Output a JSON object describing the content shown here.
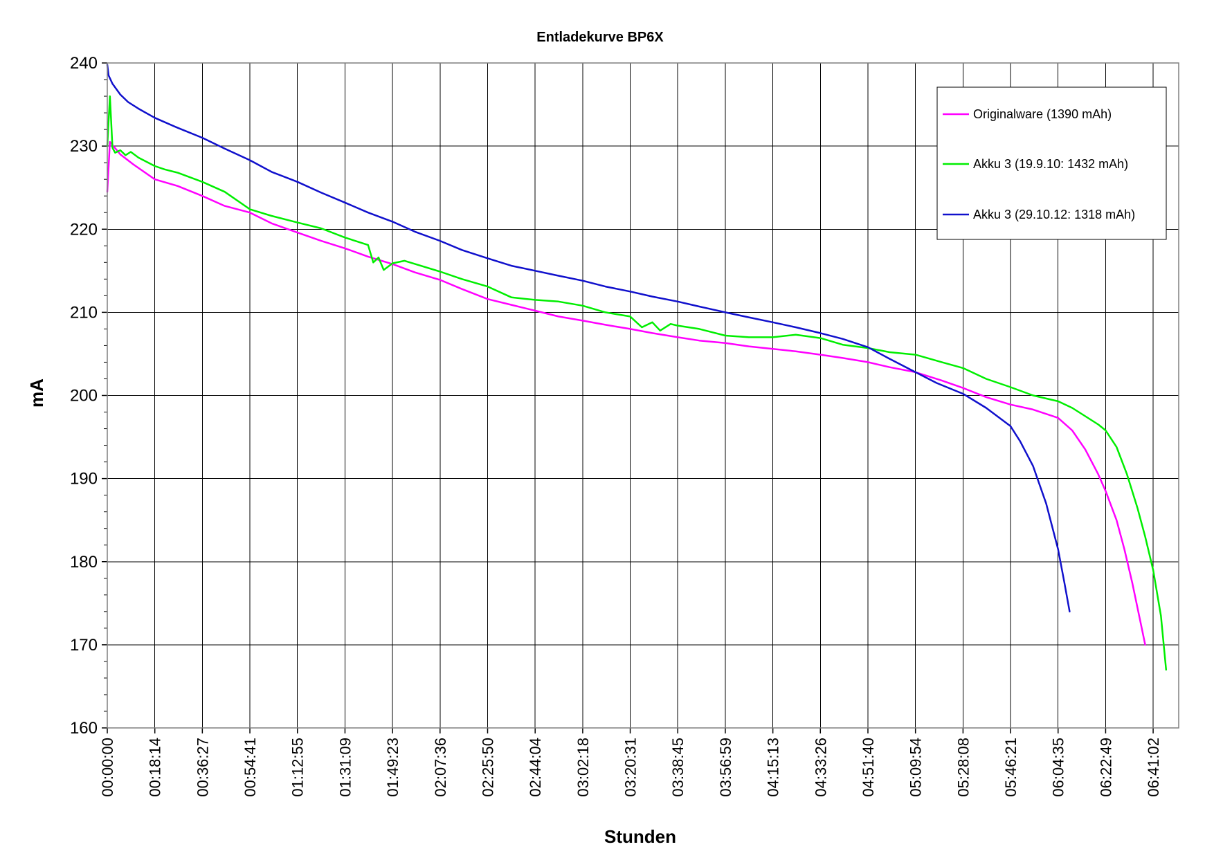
{
  "chart_data": {
    "type": "line",
    "title": "Entladekurve BP6X",
    "xlabel": "Stunden",
    "ylabel": "mA",
    "ylim": [
      160,
      240
    ],
    "yticks": [
      "160",
      "170",
      "180",
      "190",
      "200",
      "210",
      "220",
      "230",
      "240"
    ],
    "xlim_seconds": [
      0,
      24650
    ],
    "x_tick_labels": [
      "00:00:00",
      "00:18:14",
      "00:36:27",
      "00:54:41",
      "01:12:55",
      "01:31:09",
      "01:49:23",
      "02:07:36",
      "02:25:50",
      "02:44:04",
      "03:02:18",
      "03:20:31",
      "03:38:45",
      "03:56:59",
      "04:15:13",
      "04:33:26",
      "04:51:40",
      "05:09:54",
      "05:28:08",
      "05:46:21",
      "06:04:35",
      "06:22:49",
      "06:41:02"
    ],
    "grid": true,
    "legend": {
      "position": "top-right",
      "entries": [
        "Originalware (1390 mAh)",
        "Akku 3 (19.9.10: 1432 mAh)",
        "Akku 3 (29.10.12: 1318 mAh)"
      ]
    },
    "series": [
      {
        "name": "Originalware (1390 mAh)",
        "color": "#ff00ff",
        "x": [
          "00:00:00",
          "00:01:00",
          "00:05:00",
          "00:10:00",
          "00:18:14",
          "00:27:00",
          "00:36:27",
          "00:45:00",
          "00:54:41",
          "01:03:00",
          "01:12:55",
          "01:22:00",
          "01:31:09",
          "01:40:00",
          "01:49:23",
          "01:58:00",
          "02:07:36",
          "02:16:00",
          "02:25:50",
          "02:35:00",
          "02:44:04",
          "02:53:00",
          "03:02:18",
          "03:11:00",
          "03:20:31",
          "03:29:00",
          "03:38:45",
          "03:47:00",
          "03:56:59",
          "04:06:00",
          "04:15:13",
          "04:24:00",
          "04:33:26",
          "04:42:00",
          "04:51:40",
          "05:00:00",
          "05:09:54",
          "05:20:00",
          "05:28:08",
          "05:37:00",
          "05:46:21",
          "05:55:00",
          "06:04:35",
          "06:10:00",
          "06:15:00",
          "06:20:00",
          "06:22:49",
          "06:27:00",
          "06:30:00",
          "06:33:00",
          "06:36:00",
          "06:38:00"
        ],
        "y": [
          224.5,
          230.5,
          229.0,
          227.8,
          226.0,
          225.2,
          224.0,
          222.8,
          222.0,
          220.7,
          219.6,
          218.6,
          217.7,
          216.7,
          215.8,
          214.8,
          213.9,
          212.8,
          211.6,
          210.9,
          210.2,
          209.5,
          209.0,
          208.5,
          208.0,
          207.5,
          207.0,
          206.6,
          206.3,
          205.9,
          205.6,
          205.3,
          204.9,
          204.5,
          204.0,
          203.4,
          202.8,
          201.8,
          200.9,
          199.8,
          198.9,
          198.3,
          197.3,
          195.8,
          193.5,
          190.5,
          188.5,
          185.0,
          181.5,
          177.5,
          173.0,
          170.0
        ]
      },
      {
        "name": "Akku 3 (19.9.10: 1432 mAh)",
        "color": "#00ee00",
        "x": [
          "00:00:00",
          "00:01:00",
          "00:02:00",
          "00:03:00",
          "00:05:00",
          "00:07:00",
          "00:09:00",
          "00:12:00",
          "00:18:14",
          "00:22:00",
          "00:27:00",
          "00:36:27",
          "00:45:00",
          "00:54:41",
          "01:03:00",
          "01:12:55",
          "01:22:00",
          "01:31:09",
          "01:40:00",
          "01:42:00",
          "01:44:00",
          "01:46:00",
          "01:49:23",
          "01:54:00",
          "02:07:36",
          "02:16:00",
          "02:25:50",
          "02:35:00",
          "02:44:04",
          "02:53:00",
          "03:02:18",
          "03:11:00",
          "03:20:31",
          "03:25:00",
          "03:29:00",
          "03:32:00",
          "03:36:00",
          "03:38:45",
          "03:47:00",
          "03:56:59",
          "04:06:00",
          "04:15:13",
          "04:24:00",
          "04:33:26",
          "04:42:00",
          "04:51:40",
          "05:00:00",
          "05:09:54",
          "05:20:00",
          "05:28:08",
          "05:37:00",
          "05:46:21",
          "05:55:00",
          "06:04:35",
          "06:10:00",
          "06:15:00",
          "06:20:00",
          "06:22:49",
          "06:27:00",
          "06:31:00",
          "06:35:00",
          "06:38:00",
          "06:41:02",
          "06:44:00",
          "06:46:00"
        ],
        "y": [
          230.0,
          236.0,
          229.8,
          229.2,
          229.5,
          228.9,
          229.3,
          228.6,
          227.6,
          227.2,
          226.8,
          225.7,
          224.5,
          222.4,
          221.6,
          220.8,
          220.1,
          219.0,
          218.1,
          216.0,
          216.6,
          215.1,
          215.9,
          216.2,
          214.9,
          214.0,
          213.1,
          211.8,
          211.5,
          211.3,
          210.8,
          210.0,
          209.5,
          208.2,
          208.8,
          207.8,
          208.6,
          208.4,
          208.0,
          207.2,
          207.0,
          207.0,
          207.3,
          206.9,
          206.1,
          205.7,
          205.2,
          204.9,
          204.0,
          203.3,
          202.0,
          201.0,
          200.0,
          199.3,
          198.5,
          197.5,
          196.5,
          195.8,
          193.8,
          190.5,
          186.5,
          183.0,
          179.0,
          173.5,
          167.0
        ]
      },
      {
        "name": "Akku 3 (29.10.12: 1318 mAh)",
        "color": "#1010cc",
        "x": [
          "00:00:00",
          "00:00:30",
          "00:02:00",
          "00:05:00",
          "00:08:00",
          "00:12:00",
          "00:18:14",
          "00:27:00",
          "00:36:27",
          "00:45:00",
          "00:54:41",
          "01:03:00",
          "01:12:55",
          "01:22:00",
          "01:31:09",
          "01:40:00",
          "01:49:23",
          "01:58:00",
          "02:07:36",
          "02:16:00",
          "02:25:50",
          "02:35:00",
          "02:44:04",
          "02:53:00",
          "03:02:18",
          "03:11:00",
          "03:20:31",
          "03:29:00",
          "03:38:45",
          "03:47:00",
          "03:56:59",
          "04:06:00",
          "04:15:13",
          "04:24:00",
          "04:33:26",
          "04:42:00",
          "04:51:40",
          "05:00:00",
          "05:09:54",
          "05:18:00",
          "05:28:08",
          "05:37:00",
          "05:46:21",
          "05:50:00",
          "05:55:00",
          "06:00:00",
          "06:04:35",
          "06:07:00",
          "06:09:00"
        ],
        "y": [
          239.8,
          238.5,
          237.5,
          236.2,
          235.3,
          234.5,
          233.4,
          232.2,
          231.0,
          229.7,
          228.3,
          226.9,
          225.7,
          224.4,
          223.2,
          222.0,
          220.9,
          219.7,
          218.6,
          217.5,
          216.5,
          215.6,
          215.0,
          214.4,
          213.8,
          213.1,
          212.5,
          211.9,
          211.3,
          210.7,
          210.0,
          209.4,
          208.8,
          208.2,
          207.5,
          206.8,
          205.8,
          204.4,
          202.8,
          201.5,
          200.2,
          198.5,
          196.3,
          194.5,
          191.5,
          187.0,
          181.5,
          177.5,
          174.0
        ]
      }
    ]
  }
}
